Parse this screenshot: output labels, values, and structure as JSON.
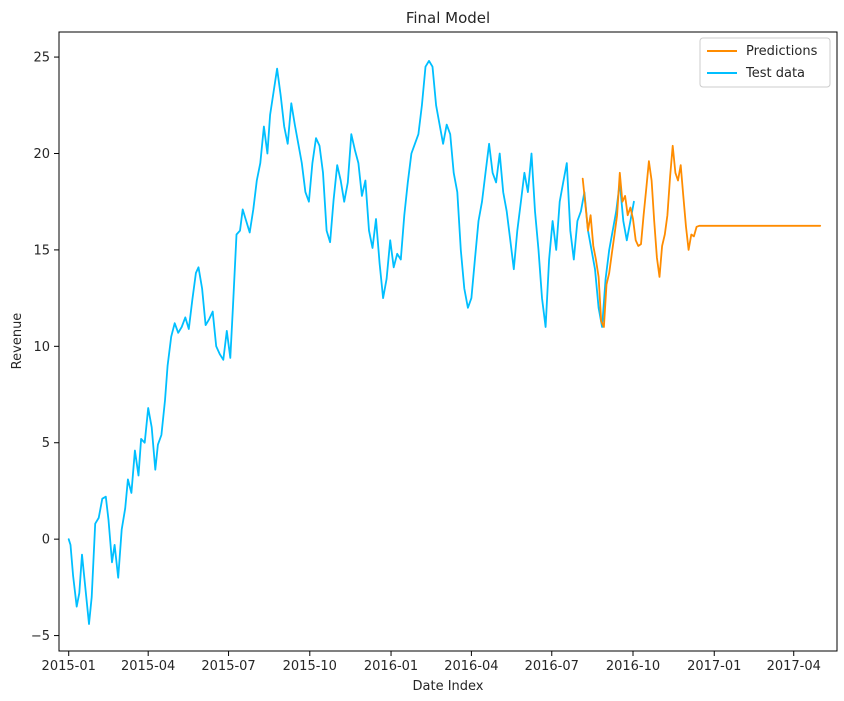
{
  "chart_data": {
    "type": "line",
    "title": "Final Model",
    "xlabel": "Date Index",
    "ylabel": "Revenue",
    "x_domain": [
      "2014-12-21",
      "2017-05-20"
    ],
    "ylim": [
      -5.8,
      26.3
    ],
    "x_ticks": [
      "2015-01",
      "2015-04",
      "2015-07",
      "2015-10",
      "2016-01",
      "2016-04",
      "2016-07",
      "2016-10",
      "2017-01",
      "2017-04"
    ],
    "y_ticks": [
      -5,
      0,
      5,
      10,
      15,
      20,
      25
    ],
    "legend_position": "top-right",
    "grid": false,
    "series": [
      {
        "name": "Test data",
        "color": "#00bfff",
        "points": [
          [
            "2015-01-01",
            0.0
          ],
          [
            "2015-01-03",
            -0.3
          ],
          [
            "2015-01-06",
            -1.9
          ],
          [
            "2015-01-10",
            -3.5
          ],
          [
            "2015-01-13",
            -2.8
          ],
          [
            "2015-01-16",
            -0.8
          ],
          [
            "2015-01-20",
            -2.6
          ],
          [
            "2015-01-24",
            -4.4
          ],
          [
            "2015-01-27",
            -3.0
          ],
          [
            "2015-01-31",
            0.8
          ],
          [
            "2015-02-04",
            1.1
          ],
          [
            "2015-02-08",
            2.1
          ],
          [
            "2015-02-12",
            2.2
          ],
          [
            "2015-02-15",
            1.0
          ],
          [
            "2015-02-19",
            -1.2
          ],
          [
            "2015-02-22",
            -0.3
          ],
          [
            "2015-02-26",
            -2.0
          ],
          [
            "2015-03-02",
            0.5
          ],
          [
            "2015-03-06",
            1.6
          ],
          [
            "2015-03-09",
            3.1
          ],
          [
            "2015-03-13",
            2.4
          ],
          [
            "2015-03-17",
            4.6
          ],
          [
            "2015-03-21",
            3.3
          ],
          [
            "2015-03-24",
            5.2
          ],
          [
            "2015-03-28",
            5.0
          ],
          [
            "2015-04-01",
            6.8
          ],
          [
            "2015-04-05",
            5.8
          ],
          [
            "2015-04-09",
            3.6
          ],
          [
            "2015-04-12",
            4.9
          ],
          [
            "2015-04-16",
            5.4
          ],
          [
            "2015-04-20",
            7.2
          ],
          [
            "2015-04-23",
            9.0
          ],
          [
            "2015-04-27",
            10.5
          ],
          [
            "2015-05-01",
            11.2
          ],
          [
            "2015-05-05",
            10.7
          ],
          [
            "2015-05-09",
            11.0
          ],
          [
            "2015-05-13",
            11.5
          ],
          [
            "2015-05-17",
            10.9
          ],
          [
            "2015-05-21",
            12.4
          ],
          [
            "2015-05-25",
            13.8
          ],
          [
            "2015-05-28",
            14.1
          ],
          [
            "2015-06-01",
            13.0
          ],
          [
            "2015-06-05",
            11.1
          ],
          [
            "2015-06-09",
            11.4
          ],
          [
            "2015-06-13",
            11.8
          ],
          [
            "2015-06-17",
            10.0
          ],
          [
            "2015-06-21",
            9.6
          ],
          [
            "2015-06-25",
            9.3
          ],
          [
            "2015-06-29",
            10.8
          ],
          [
            "2015-07-03",
            9.4
          ],
          [
            "2015-07-06",
            12.1
          ],
          [
            "2015-07-10",
            15.8
          ],
          [
            "2015-07-14",
            16.0
          ],
          [
            "2015-07-17",
            17.1
          ],
          [
            "2015-07-21",
            16.5
          ],
          [
            "2015-07-25",
            15.9
          ],
          [
            "2015-07-29",
            17.1
          ],
          [
            "2015-08-02",
            18.6
          ],
          [
            "2015-08-06",
            19.5
          ],
          [
            "2015-08-10",
            21.4
          ],
          [
            "2015-08-14",
            20.0
          ],
          [
            "2015-08-17",
            22.0
          ],
          [
            "2015-08-21",
            23.2
          ],
          [
            "2015-08-25",
            24.4
          ],
          [
            "2015-08-29",
            23.0
          ],
          [
            "2015-09-02",
            21.4
          ],
          [
            "2015-09-06",
            20.5
          ],
          [
            "2015-09-10",
            22.6
          ],
          [
            "2015-09-14",
            21.5
          ],
          [
            "2015-09-18",
            20.5
          ],
          [
            "2015-09-22",
            19.5
          ],
          [
            "2015-09-26",
            18.0
          ],
          [
            "2015-09-30",
            17.5
          ],
          [
            "2015-10-04",
            19.5
          ],
          [
            "2015-10-08",
            20.8
          ],
          [
            "2015-10-12",
            20.4
          ],
          [
            "2015-10-16",
            19.0
          ],
          [
            "2015-10-20",
            16.0
          ],
          [
            "2015-10-24",
            15.4
          ],
          [
            "2015-10-28",
            17.6
          ],
          [
            "2015-11-01",
            19.4
          ],
          [
            "2015-11-05",
            18.6
          ],
          [
            "2015-11-09",
            17.5
          ],
          [
            "2015-11-13",
            18.5
          ],
          [
            "2015-11-17",
            21.0
          ],
          [
            "2015-11-21",
            20.2
          ],
          [
            "2015-11-25",
            19.5
          ],
          [
            "2015-11-29",
            17.8
          ],
          [
            "2015-12-03",
            18.6
          ],
          [
            "2015-12-07",
            16.0
          ],
          [
            "2015-12-11",
            15.1
          ],
          [
            "2015-12-15",
            16.6
          ],
          [
            "2015-12-19",
            14.3
          ],
          [
            "2015-12-23",
            12.5
          ],
          [
            "2015-12-27",
            13.5
          ],
          [
            "2015-12-31",
            15.5
          ],
          [
            "2016-01-04",
            14.1
          ],
          [
            "2016-01-08",
            14.8
          ],
          [
            "2016-01-12",
            14.5
          ],
          [
            "2016-01-16",
            16.8
          ],
          [
            "2016-01-20",
            18.5
          ],
          [
            "2016-01-24",
            20.0
          ],
          [
            "2016-01-28",
            20.5
          ],
          [
            "2016-02-01",
            21.0
          ],
          [
            "2016-02-05",
            22.5
          ],
          [
            "2016-02-09",
            24.5
          ],
          [
            "2016-02-13",
            24.8
          ],
          [
            "2016-02-17",
            24.5
          ],
          [
            "2016-02-21",
            22.5
          ],
          [
            "2016-02-25",
            21.5
          ],
          [
            "2016-02-29",
            20.5
          ],
          [
            "2016-03-04",
            21.5
          ],
          [
            "2016-03-08",
            21.0
          ],
          [
            "2016-03-12",
            19.0
          ],
          [
            "2016-03-16",
            18.0
          ],
          [
            "2016-03-20",
            15.0
          ],
          [
            "2016-03-24",
            13.0
          ],
          [
            "2016-03-28",
            12.0
          ],
          [
            "2016-04-01",
            12.5
          ],
          [
            "2016-04-05",
            14.5
          ],
          [
            "2016-04-09",
            16.5
          ],
          [
            "2016-04-13",
            17.5
          ],
          [
            "2016-04-17",
            19.0
          ],
          [
            "2016-04-21",
            20.5
          ],
          [
            "2016-04-25",
            19.0
          ],
          [
            "2016-04-29",
            18.5
          ],
          [
            "2016-05-03",
            20.0
          ],
          [
            "2016-05-07",
            18.0
          ],
          [
            "2016-05-11",
            17.0
          ],
          [
            "2016-05-15",
            15.5
          ],
          [
            "2016-05-19",
            14.0
          ],
          [
            "2016-05-23",
            16.0
          ],
          [
            "2016-05-27",
            17.5
          ],
          [
            "2016-05-31",
            19.0
          ],
          [
            "2016-06-04",
            18.0
          ],
          [
            "2016-06-08",
            20.0
          ],
          [
            "2016-06-12",
            17.0
          ],
          [
            "2016-06-16",
            15.0
          ],
          [
            "2016-06-20",
            12.5
          ],
          [
            "2016-06-24",
            11.0
          ],
          [
            "2016-06-28",
            14.5
          ],
          [
            "2016-07-02",
            16.5
          ],
          [
            "2016-07-06",
            15.0
          ],
          [
            "2016-07-10",
            17.5
          ],
          [
            "2016-07-14",
            18.5
          ],
          [
            "2016-07-18",
            19.5
          ],
          [
            "2016-07-22",
            16.0
          ],
          [
            "2016-07-26",
            14.5
          ],
          [
            "2016-07-30",
            16.5
          ],
          [
            "2016-08-03",
            17.0
          ],
          [
            "2016-08-07",
            18.0
          ],
          [
            "2016-08-11",
            16.0
          ],
          [
            "2016-08-15",
            15.0
          ],
          [
            "2016-08-19",
            14.0
          ],
          [
            "2016-08-23",
            12.0
          ],
          [
            "2016-08-27",
            11.0
          ],
          [
            "2016-08-31",
            13.5
          ],
          [
            "2016-09-04",
            15.0
          ],
          [
            "2016-09-08",
            16.0
          ],
          [
            "2016-09-12",
            17.0
          ],
          [
            "2016-09-16",
            18.5
          ],
          [
            "2016-09-20",
            16.5
          ],
          [
            "2016-09-24",
            15.5
          ],
          [
            "2016-09-28",
            16.5
          ],
          [
            "2016-10-02",
            17.5
          ]
        ]
      },
      {
        "name": "Predictions",
        "color": "#ff8c00",
        "points": [
          [
            "2016-08-05",
            18.7
          ],
          [
            "2016-08-08",
            17.4
          ],
          [
            "2016-08-11",
            16.0
          ],
          [
            "2016-08-14",
            16.8
          ],
          [
            "2016-08-17",
            15.2
          ],
          [
            "2016-08-20",
            14.5
          ],
          [
            "2016-08-23",
            13.6
          ],
          [
            "2016-08-26",
            11.3
          ],
          [
            "2016-08-29",
            11.0
          ],
          [
            "2016-09-01",
            13.2
          ],
          [
            "2016-09-04",
            13.8
          ],
          [
            "2016-09-07",
            14.8
          ],
          [
            "2016-09-10",
            15.8
          ],
          [
            "2016-09-13",
            16.8
          ],
          [
            "2016-09-16",
            19.0
          ],
          [
            "2016-09-19",
            17.5
          ],
          [
            "2016-09-22",
            17.8
          ],
          [
            "2016-09-25",
            16.8
          ],
          [
            "2016-09-28",
            17.2
          ],
          [
            "2016-10-01",
            16.6
          ],
          [
            "2016-10-04",
            15.5
          ],
          [
            "2016-10-07",
            15.2
          ],
          [
            "2016-10-10",
            15.3
          ],
          [
            "2016-10-13",
            16.8
          ],
          [
            "2016-10-16",
            18.2
          ],
          [
            "2016-10-19",
            19.6
          ],
          [
            "2016-10-22",
            18.6
          ],
          [
            "2016-10-25",
            16.5
          ],
          [
            "2016-10-28",
            14.6
          ],
          [
            "2016-10-31",
            13.6
          ],
          [
            "2016-11-03",
            15.2
          ],
          [
            "2016-11-06",
            15.8
          ],
          [
            "2016-11-09",
            16.8
          ],
          [
            "2016-11-12",
            18.8
          ],
          [
            "2016-11-15",
            20.4
          ],
          [
            "2016-11-18",
            19.0
          ],
          [
            "2016-11-21",
            18.6
          ],
          [
            "2016-11-24",
            19.4
          ],
          [
            "2016-11-27",
            17.8
          ],
          [
            "2016-11-30",
            16.2
          ],
          [
            "2016-12-03",
            15.0
          ],
          [
            "2016-12-06",
            15.8
          ],
          [
            "2016-12-09",
            15.7
          ],
          [
            "2016-12-12",
            16.2
          ],
          [
            "2016-12-15",
            16.25
          ],
          [
            "2016-12-20",
            16.25
          ],
          [
            "2017-01-15",
            16.25
          ],
          [
            "2017-02-15",
            16.25
          ],
          [
            "2017-03-15",
            16.25
          ],
          [
            "2017-04-15",
            16.25
          ],
          [
            "2017-05-01",
            16.25
          ]
        ]
      }
    ]
  }
}
